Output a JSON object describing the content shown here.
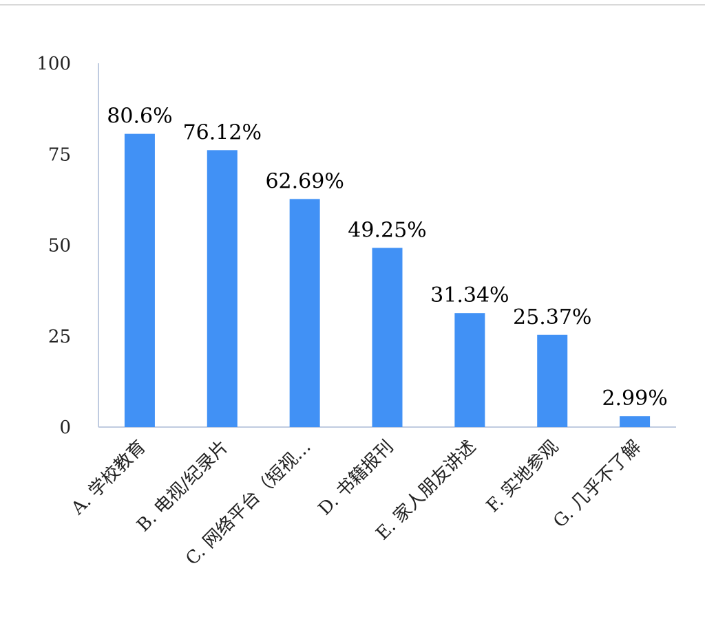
{
  "chart_data": {
    "type": "bar",
    "categories": [
      "A. 学校教育",
      "B. 电视/纪录片",
      "C. 网络平台（短视…",
      "D. 书籍报刊",
      "E. 家人朋友讲述",
      "F. 实地参观",
      "G. 几乎不了解"
    ],
    "values": [
      80.6,
      76.12,
      62.69,
      49.25,
      31.34,
      25.37,
      2.99
    ],
    "data_labels": [
      "80.6%",
      "76.12%",
      "62.69%",
      "49.25%",
      "31.34%",
      "25.37%",
      "2.99%"
    ],
    "y_ticks": [
      "0",
      "25",
      "50",
      "75",
      "100"
    ],
    "ylim": [
      0,
      100
    ],
    "title": "",
    "xlabel": "",
    "ylabel": "",
    "grid": false,
    "legend": "none",
    "bar_color": "#4191f5",
    "axis_color": "#bfcbe0"
  }
}
